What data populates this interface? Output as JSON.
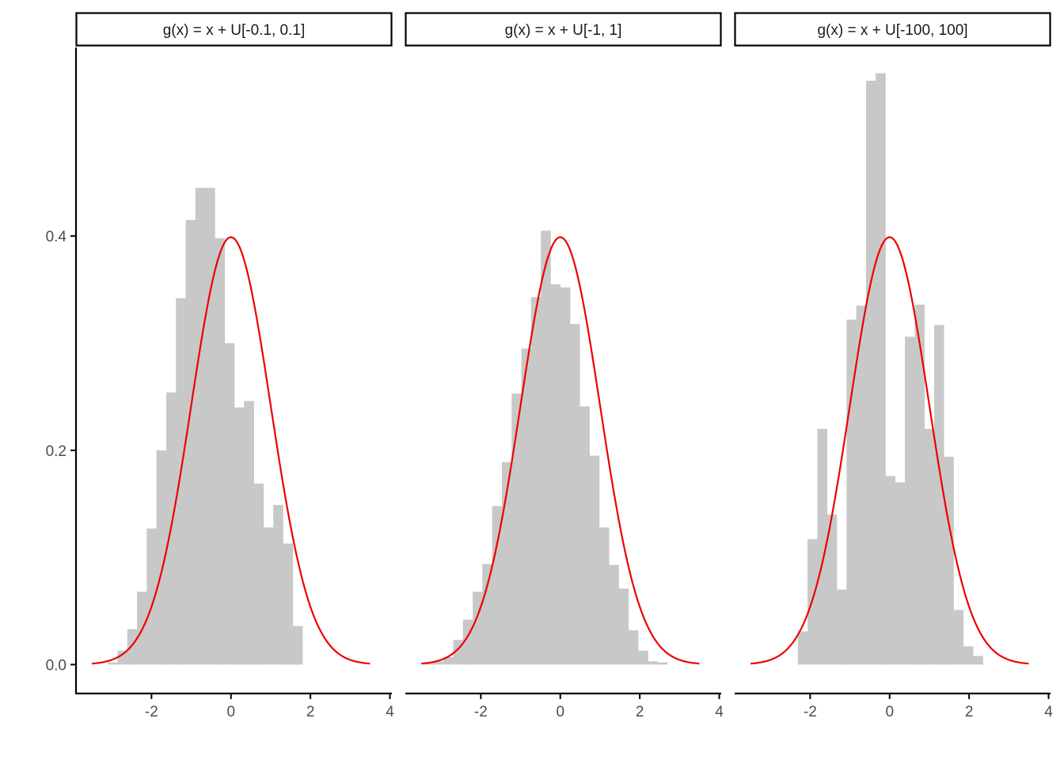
{
  "colors": {
    "bars": "#c8c8c8",
    "curve": "#ee0000",
    "axis": "#000000",
    "tick_label": "#4d4d4d",
    "strip_border": "#000000",
    "strip_text": "#1a1a1a"
  },
  "chart_data": {
    "type": "bar",
    "layout": "facet-3-columns",
    "grid": false,
    "legend": "none",
    "x_ticks": [
      "-2",
      "0",
      "2",
      "4"
    ],
    "y_ticks": [
      "0.0",
      "0.2",
      "0.4"
    ],
    "xlim": [
      -3.9,
      4.05
    ],
    "ylim": [
      -0.027,
      0.576
    ],
    "bin_width": 0.245,
    "overlay": {
      "type": "line",
      "function": "standard-normal-density",
      "x_range": [
        -3.5,
        3.5
      ]
    },
    "panels": [
      {
        "strip": "g(x) = x + U[-0.1, 0.1]",
        "bin_start": -3.1,
        "density": [
          0.002,
          0.013,
          0.033,
          0.068,
          0.127,
          0.2,
          0.254,
          0.342,
          0.415,
          0.445,
          0.445,
          0.398,
          0.3,
          0.24,
          0.246,
          0.169,
          0.128,
          0.149,
          0.113,
          0.036
        ]
      },
      {
        "strip": "g(x) = x + U[-1, 1]",
        "bin_start": -3.43,
        "density": [
          0.002,
          0.003,
          0.007,
          0.023,
          0.042,
          0.068,
          0.094,
          0.148,
          0.189,
          0.253,
          0.295,
          0.343,
          0.405,
          0.355,
          0.352,
          0.318,
          0.241,
          0.195,
          0.128,
          0.093,
          0.071,
          0.032,
          0.013,
          0.003,
          0.002
        ]
      },
      {
        "strip": "g(x) = x + U[-100, 100]",
        "bin_start": -2.31,
        "density": [
          0.031,
          0.117,
          0.22,
          0.14,
          0.07,
          0.322,
          0.335,
          0.545,
          0.552,
          0.176,
          0.17,
          0.306,
          0.336,
          0.22,
          0.317,
          0.194,
          0.051,
          0.017,
          0.008
        ]
      }
    ]
  }
}
